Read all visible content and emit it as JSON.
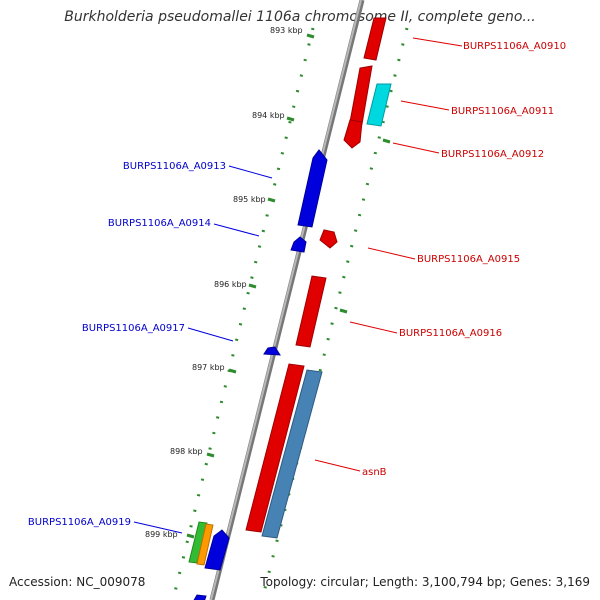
{
  "title": "Burkholderia pseudomallei 1106a chromosome II, complete geno...",
  "footer": {
    "accession": "Accession: NC_009078",
    "topology": "Topology: circular; Length: 3,100,794 bp; Genes: 3,169"
  },
  "colors": {
    "forward_strand": "#e00000",
    "reverse_strand": "#0000dd",
    "backbone": "#888888",
    "tick": "#2e8b2e",
    "cyan_gene": "#00d8e0",
    "steelblue_gene": "#4682b4",
    "green_gene": "#33bb33",
    "orange_gene": "#ff9900"
  },
  "ticks": [
    "893 kbp",
    "894 kbp",
    "895 kbp",
    "896 kbp",
    "897 kbp",
    "898 kbp",
    "899 kbp"
  ],
  "labels": {
    "A0910": "BURPS1106A_A0910",
    "A0911": "BURPS1106A_A0911",
    "A0912": "BURPS1106A_A0912",
    "A0913": "BURPS1106A_A0913",
    "A0914": "BURPS1106A_A0914",
    "A0915": "BURPS1106A_A0915",
    "A0916": "BURPS1106A_A0916",
    "A0917": "BURPS1106A_A0917",
    "asnB": "asnB",
    "A0919": "BURPS1106A_A0919"
  }
}
